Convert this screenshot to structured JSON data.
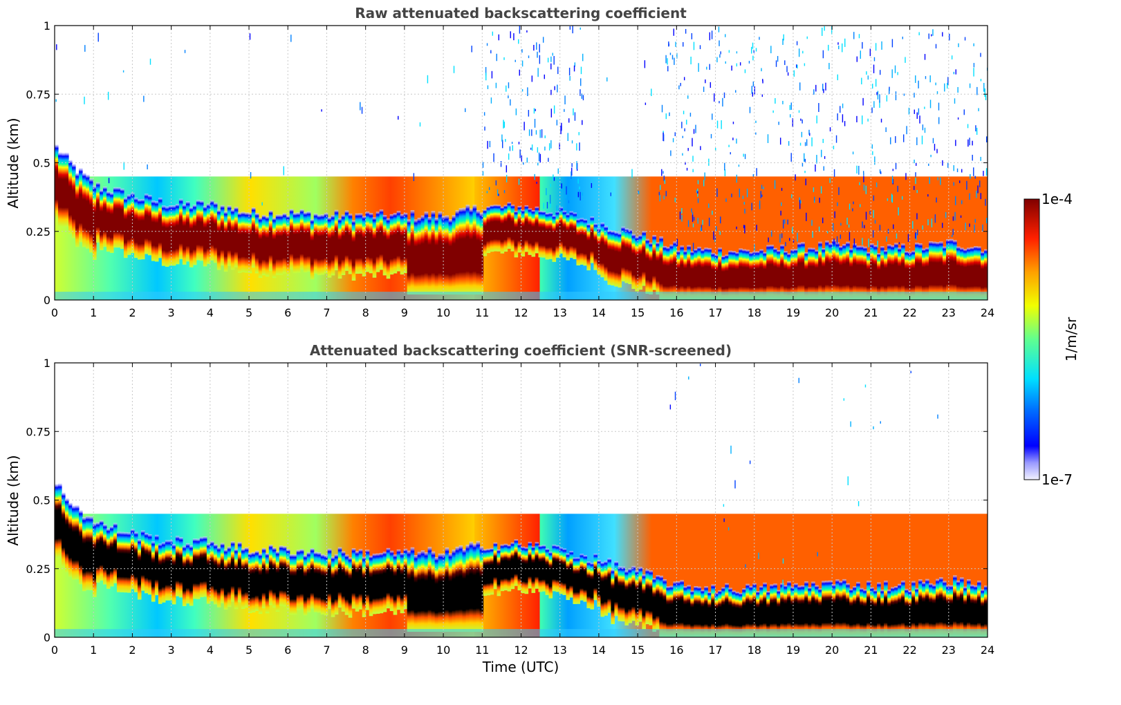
{
  "chart_data": [
    {
      "type": "heatmap",
      "title": "Raw attenuated backscattering coefficient",
      "xlabel": "",
      "ylabel": "Altitude (km)",
      "xlim": [
        0,
        24
      ],
      "ylim": [
        0,
        1
      ],
      "x_ticks": [
        "0",
        "1",
        "2",
        "3",
        "4",
        "5",
        "6",
        "7",
        "8",
        "9",
        "10",
        "11",
        "12",
        "13",
        "14",
        "15",
        "16",
        "17",
        "18",
        "19",
        "20",
        "21",
        "22",
        "23",
        "24"
      ],
      "y_ticks": [
        "0",
        "0.25",
        "0.5",
        "0.75",
        "1"
      ],
      "grid": true,
      "screened": false,
      "layer_top_profile": {
        "time_utc": [
          0,
          0.5,
          1,
          1.5,
          2,
          3,
          4,
          5,
          6,
          7,
          8,
          9,
          10,
          11,
          12,
          13,
          14,
          15,
          16,
          17,
          18,
          19,
          20,
          21,
          22,
          23,
          24
        ],
        "altitude_km": [
          0.56,
          0.48,
          0.42,
          0.4,
          0.38,
          0.35,
          0.35,
          0.32,
          0.32,
          0.31,
          0.31,
          0.31,
          0.31,
          0.34,
          0.34,
          0.32,
          0.28,
          0.24,
          0.19,
          0.18,
          0.18,
          0.19,
          0.2,
          0.19,
          0.19,
          0.21,
          0.19
        ]
      }
    },
    {
      "type": "heatmap",
      "title": "Attenuated backscattering coefficient (SNR-screened)",
      "xlabel": "Time (UTC)",
      "ylabel": "Altitude (km)",
      "xlim": [
        0,
        24
      ],
      "ylim": [
        0,
        1
      ],
      "x_ticks": [
        "0",
        "1",
        "2",
        "3",
        "4",
        "5",
        "6",
        "7",
        "8",
        "9",
        "10",
        "11",
        "12",
        "13",
        "14",
        "15",
        "16",
        "17",
        "18",
        "19",
        "20",
        "21",
        "22",
        "23",
        "24"
      ],
      "y_ticks": [
        "0",
        "0.25",
        "0.5",
        "0.75",
        "1"
      ],
      "grid": true,
      "screened": true,
      "layer_top_profile": {
        "time_utc": [
          0,
          0.5,
          1,
          1.5,
          2,
          3,
          4,
          5,
          6,
          7,
          8,
          9,
          10,
          11,
          12,
          13,
          14,
          15,
          16,
          17,
          18,
          19,
          20,
          21,
          22,
          23,
          24
        ],
        "altitude_km": [
          0.56,
          0.48,
          0.42,
          0.4,
          0.38,
          0.35,
          0.35,
          0.32,
          0.32,
          0.31,
          0.31,
          0.31,
          0.31,
          0.34,
          0.34,
          0.32,
          0.28,
          0.24,
          0.19,
          0.18,
          0.18,
          0.19,
          0.2,
          0.19,
          0.19,
          0.21,
          0.19
        ]
      }
    }
  ],
  "colorbar": {
    "label": "1/m/sr",
    "max_label": "1e-4",
    "min_label": "1e-7",
    "scale": "log",
    "range": [
      1e-07,
      0.0001
    ]
  },
  "colors": {
    "high": "#800000",
    "saturated_screened": "#000000",
    "low": "#e8e8ff",
    "title": "#444444",
    "grid": "#c8c8c8"
  }
}
